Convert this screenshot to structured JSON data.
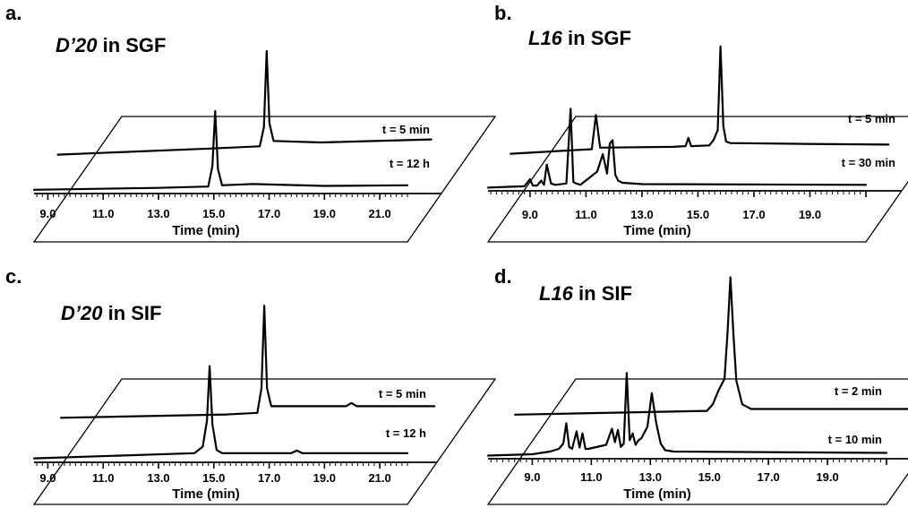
{
  "chart_data": [
    {
      "type": "line",
      "panel": "a.",
      "title_compound": "D’20",
      "title_rest": " in SGF",
      "xlabel": "Time (min)",
      "xlim": [
        8.5,
        22.0
      ],
      "xticks": [
        "9.0",
        "11.0",
        "13.0",
        "15.0",
        "17.0",
        "19.0",
        "21.0"
      ],
      "series": [
        {
          "name": "t = 5 min",
          "x": [
            8.5,
            14.0,
            15.8,
            15.95,
            16.05,
            16.15,
            16.3,
            18.0,
            22.0
          ],
          "y": [
            4,
            12,
            15,
            40,
            140,
            45,
            22,
            20,
            24
          ]
        },
        {
          "name": "t = 12 h",
          "x": [
            8.5,
            13.0,
            14.8,
            14.95,
            15.05,
            15.15,
            15.3,
            16.4,
            19.0,
            22.0
          ],
          "y": [
            3,
            6,
            8,
            40,
            125,
            35,
            10,
            12,
            9,
            10
          ]
        }
      ]
    },
    {
      "type": "line",
      "panel": "b.",
      "title_compound": "L16",
      "title_rest": " in SGF",
      "xlabel": "Time (min)",
      "xlim": [
        7.5,
        21.0
      ],
      "xticks": [
        "9.0",
        "11.0",
        "13.0",
        "15.0",
        "17.0",
        "19.0"
      ],
      "series": [
        {
          "name": "t = 5 min",
          "x": [
            7.5,
            10.4,
            10.55,
            10.7,
            13.3,
            13.75,
            13.85,
            13.95,
            14.6,
            14.75,
            14.9,
            15.0,
            15.1,
            15.2,
            15.35,
            18.0,
            21.0
          ],
          "y": [
            4,
            10,
            55,
            12,
            13,
            14,
            25,
            14,
            15,
            22,
            35,
            145,
            40,
            20,
            18,
            17,
            16
          ]
        },
        {
          "name": "t = 30 min",
          "x": [
            7.5,
            8.8,
            9.0,
            9.1,
            9.25,
            9.4,
            9.5,
            9.6,
            9.75,
            9.9,
            10.3,
            10.45,
            10.55,
            10.65,
            10.8,
            11.4,
            11.6,
            11.75,
            11.85,
            11.95,
            12.05,
            12.15,
            12.3,
            13.0,
            21.0
          ],
          "y": [
            2,
            4,
            14,
            5,
            5,
            12,
            6,
            35,
            8,
            6,
            8,
            115,
            10,
            8,
            6,
            25,
            50,
            22,
            65,
            70,
            20,
            12,
            9,
            7,
            6
          ]
        }
      ]
    },
    {
      "type": "line",
      "panel": "c.",
      "title_compound": "D’20",
      "title_rest": " in SIF",
      "xlabel": "Time (min)",
      "xlim": [
        8.5,
        22.0
      ],
      "xticks": [
        "9.0",
        "11.0",
        "13.0",
        "15.0",
        "17.0",
        "19.0",
        "21.0"
      ],
      "series": [
        {
          "name": "t = 5 min",
          "x": [
            8.5,
            14.5,
            15.6,
            15.75,
            15.85,
            15.95,
            16.1,
            18.8,
            19.0,
            19.2,
            22.0
          ],
          "y": [
            4,
            8,
            10,
            40,
            140,
            40,
            18,
            18,
            22,
            18,
            18
          ]
        },
        {
          "name": "t = 12 h",
          "x": [
            8.5,
            14.3,
            14.6,
            14.75,
            14.85,
            14.95,
            15.1,
            15.3,
            17.8,
            18.0,
            18.2,
            22.0
          ],
          "y": [
            2,
            10,
            20,
            60,
            145,
            55,
            15,
            10,
            10,
            14,
            10,
            10
          ]
        }
      ]
    },
    {
      "type": "line",
      "panel": "d.",
      "title_compound": "L16",
      "title_rest": " in SIF",
      "xlabel": "Time (min)",
      "xlim": [
        7.5,
        21.0
      ],
      "xticks": [
        "9.0",
        "11.0",
        "13.0",
        "15.0",
        "17.0",
        "19.0"
      ],
      "series": [
        {
          "name": "t = 2 min",
          "x": [
            7.5,
            14.0,
            14.2,
            14.4,
            14.6,
            14.7,
            14.8,
            14.9,
            15.0,
            15.2,
            15.5,
            21.0
          ],
          "y": [
            4,
            8,
            15,
            30,
            42,
            90,
            150,
            90,
            40,
            15,
            10,
            10
          ]
        },
        {
          "name": "t = 10 min",
          "x": [
            7.5,
            9.0,
            9.6,
            9.9,
            10.05,
            10.15,
            10.25,
            10.35,
            10.5,
            10.6,
            10.7,
            10.8,
            10.9,
            11.5,
            11.7,
            11.8,
            11.9,
            12.0,
            12.1,
            12.2,
            12.3,
            12.4,
            12.5,
            12.6,
            12.7,
            12.9,
            13.05,
            13.2,
            13.35,
            13.5,
            13.8,
            21.0
          ],
          "y": [
            2,
            4,
            8,
            12,
            20,
            50,
            15,
            12,
            38,
            14,
            35,
            12,
            12,
            18,
            42,
            22,
            40,
            15,
            20,
            125,
            25,
            35,
            18,
            25,
            28,
            45,
            95,
            50,
            20,
            10,
            8,
            6
          ]
        }
      ]
    }
  ]
}
